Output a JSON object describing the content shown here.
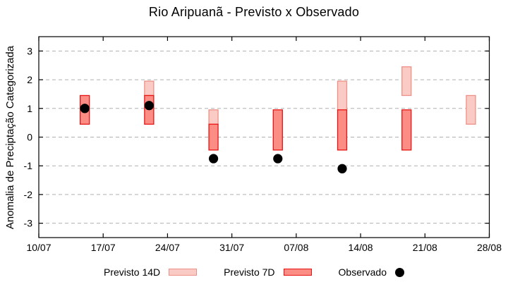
{
  "chart_data": {
    "type": "bar",
    "title": "Rio Aripuanã - Previsto x Observado",
    "xlabel": "",
    "ylabel": "Anomalia de Preciptação Categorizada",
    "ylim": [
      -3.5,
      3.5
    ],
    "yticks": [
      -3,
      -2,
      -1,
      0,
      1,
      2,
      3
    ],
    "x_total_days": 49,
    "xticks": [
      {
        "day": 0,
        "label": "10/07"
      },
      {
        "day": 7,
        "label": "17/07"
      },
      {
        "day": 14,
        "label": "24/07"
      },
      {
        "day": 21,
        "label": "31/07"
      },
      {
        "day": 28,
        "label": "07/08"
      },
      {
        "day": 35,
        "label": "14/08"
      },
      {
        "day": 42,
        "label": "21/08"
      },
      {
        "day": 49,
        "label": "28/08"
      }
    ],
    "grid": "horizontal-dashed",
    "legend_position": "bottom",
    "bar_width_days": 1,
    "groups": [
      {
        "date": "15/07",
        "day": 5,
        "previsto_14d": null,
        "previsto_7d": [
          0.45,
          1.45
        ],
        "observado": 1.0
      },
      {
        "date": "22/07",
        "day": 12,
        "previsto_14d": [
          1.45,
          1.95
        ],
        "previsto_7d": [
          0.45,
          1.45
        ],
        "observado": 1.1
      },
      {
        "date": "29/07",
        "day": 19,
        "previsto_14d": [
          0.45,
          0.95
        ],
        "previsto_7d": [
          -0.45,
          0.45
        ],
        "observado": -0.75
      },
      {
        "date": "05/08",
        "day": 26,
        "previsto_14d": null,
        "previsto_7d": [
          -0.45,
          0.95
        ],
        "observado": -0.75
      },
      {
        "date": "12/08",
        "day": 33,
        "previsto_14d": [
          0.95,
          1.95
        ],
        "previsto_7d": [
          -0.45,
          0.95
        ],
        "observado": -1.1
      },
      {
        "date": "19/08",
        "day": 40,
        "previsto_14d": [
          1.45,
          2.45
        ],
        "previsto_7d": [
          -0.45,
          0.95
        ],
        "observado": null
      },
      {
        "date": "26/08",
        "day": 47,
        "previsto_14d": [
          0.45,
          1.45
        ],
        "previsto_7d": null,
        "observado": null
      }
    ],
    "legend": [
      {
        "label": "Previsto 14D",
        "marker": "light-pink-bar"
      },
      {
        "label": "Previsto 7D",
        "marker": "red-bar"
      },
      {
        "label": "Observado",
        "marker": "black-dot"
      }
    ],
    "colors": {
      "previsto_14d_fill": "#facac4",
      "previsto_14d_border": "#ee9087",
      "previsto_7d_fill": "#fb8d84",
      "previsto_7d_border": "#e81414",
      "observado": "#000000",
      "grid": "#b0b0b0",
      "axis": "#000000"
    }
  }
}
